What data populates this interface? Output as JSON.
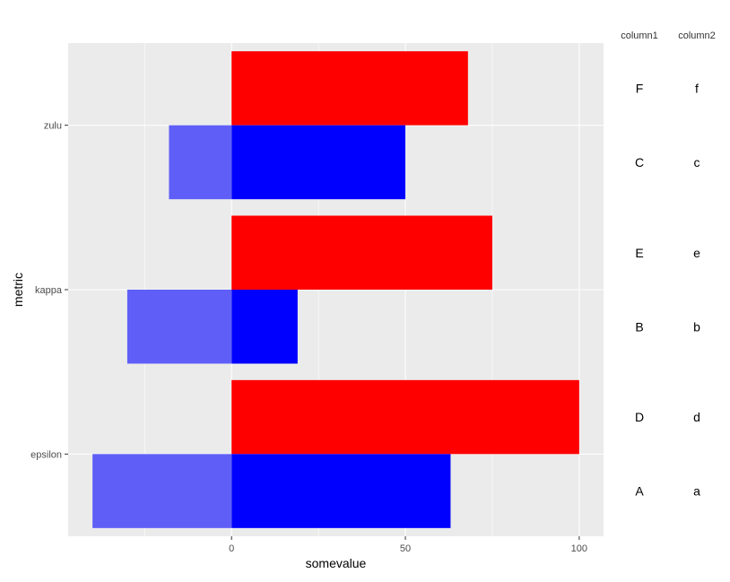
{
  "chart_data": {
    "type": "bar",
    "orientation": "horizontal",
    "xlabel": "somevalue",
    "ylabel": "metric",
    "categories": [
      "epsilon",
      "kappa",
      "zulu"
    ],
    "xlim": [
      -47,
      107
    ],
    "x_ticks": [
      0,
      50,
      100
    ],
    "grid": true,
    "series": [
      {
        "color": "#FF0000",
        "position": "upper",
        "values": [
          100,
          75,
          68
        ]
      },
      {
        "color": "#0000FF",
        "position": "lower",
        "values": [
          63,
          19,
          50
        ]
      },
      {
        "color": "#5F5FF7",
        "position": "lower",
        "values": [
          -40,
          -30,
          -18
        ]
      }
    ],
    "table": {
      "headers": [
        "column1",
        "column2"
      ],
      "rows": [
        {
          "category": "zulu",
          "upper": [
            "F",
            "f"
          ],
          "lower": [
            "C",
            "c"
          ]
        },
        {
          "category": "kappa",
          "upper": [
            "E",
            "e"
          ],
          "lower": [
            "B",
            "b"
          ]
        },
        {
          "category": "epsilon",
          "upper": [
            "D",
            "d"
          ],
          "lower": [
            "A",
            "a"
          ]
        }
      ]
    }
  }
}
